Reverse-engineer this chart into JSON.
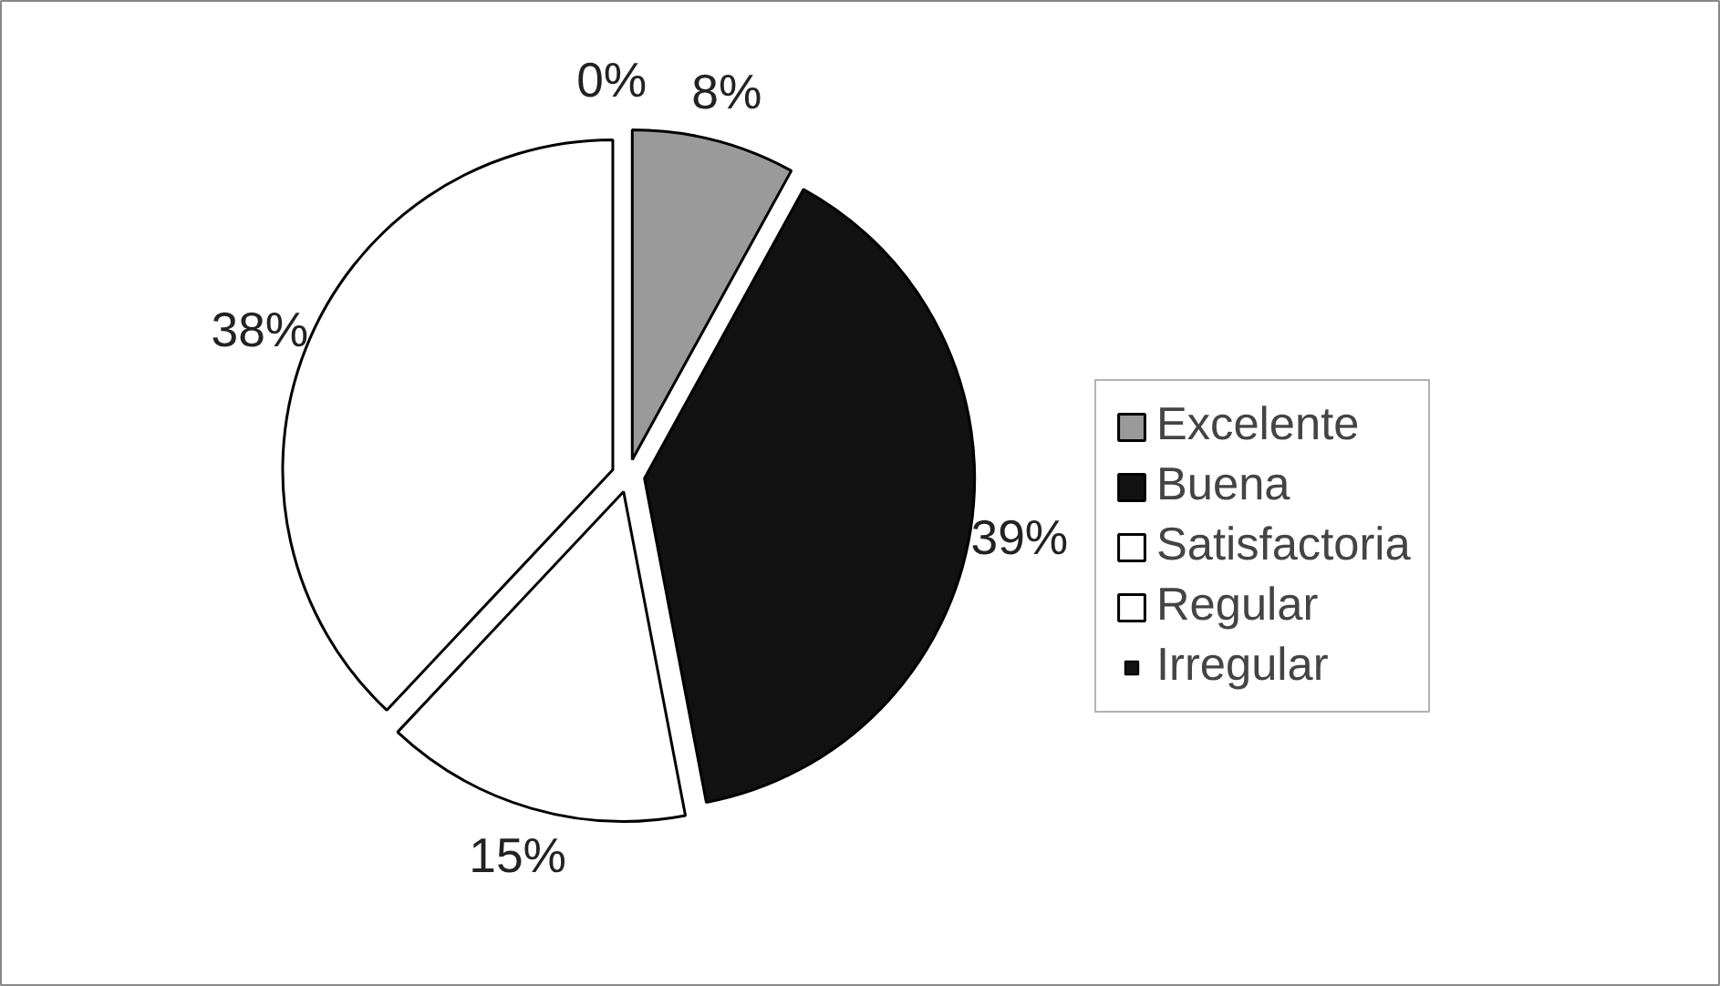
{
  "chart_data": {
    "type": "pie",
    "categories": [
      "Excelente",
      "Buena",
      "Satisfactoria",
      "Regular",
      "Irregular"
    ],
    "values": [
      8,
      39,
      15,
      38,
      0
    ],
    "colors": [
      "#9a9a9a",
      "#111111",
      "#ffffff",
      "#ffffff",
      "#111111"
    ],
    "value_labels": [
      "8%",
      "39%",
      "15%",
      "38%",
      "0%"
    ],
    "legend": "right"
  }
}
